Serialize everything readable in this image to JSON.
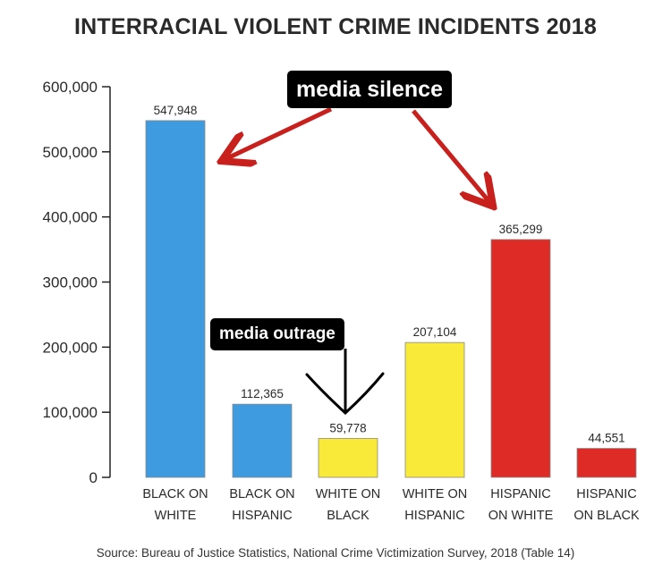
{
  "chart_data": {
    "type": "bar",
    "title": "INTERRACIAL VIOLENT CRIME INCIDENTS 2018",
    "categories": [
      [
        "BLACK ON",
        "WHITE"
      ],
      [
        "BLACK ON",
        "HISPANIC"
      ],
      [
        "WHITE ON",
        "BLACK"
      ],
      [
        "WHITE ON",
        "HISPANIC"
      ],
      [
        "HISPANIC",
        "ON WHITE"
      ],
      [
        "HISPANIC",
        "ON BLACK"
      ]
    ],
    "values": [
      547948,
      112365,
      59778,
      207104,
      365299,
      44551
    ],
    "value_labels": [
      "547,948",
      "112,365",
      "59,778",
      "207,104",
      "365,299",
      "44,551"
    ],
    "bar_colors": [
      "#3f9be0",
      "#3f9be0",
      "#f9e938",
      "#f9e938",
      "#de2b26",
      "#de2b26"
    ],
    "ylim": [
      0,
      600000
    ],
    "yticks": [
      0,
      100000,
      200000,
      300000,
      400000,
      500000,
      600000
    ],
    "ytick_labels": [
      "0",
      "100,000",
      "200,000",
      "300,000",
      "400,000",
      "500,000",
      "600,000"
    ],
    "grid": false,
    "xlabel": "",
    "ylabel": "",
    "source": "Source: Bureau of Justice Statistics, National Crime Victimization Survey, 2018 (Table 14)"
  },
  "annotations": {
    "media_silence": "media silence",
    "media_outrage": "media outrage"
  },
  "colors": {
    "arrow": "#c8201d",
    "annotation_bg": "#000000",
    "annotation_text": "#ffffff",
    "axis": "#222222"
  }
}
